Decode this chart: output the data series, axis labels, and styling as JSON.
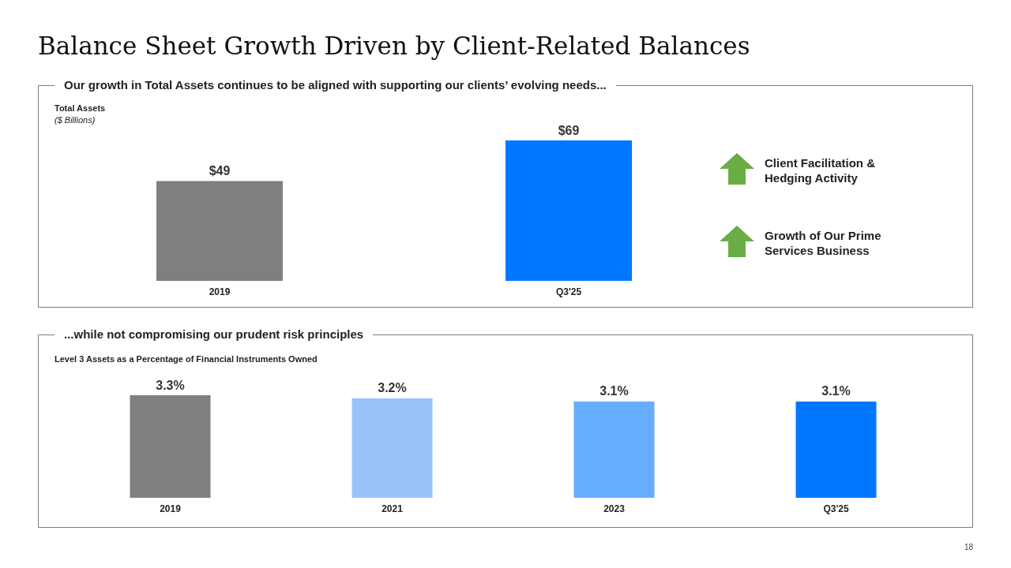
{
  "chart_data": [
    {
      "type": "bar",
      "title": "Balance Sheet Growth Driven by Client-Related Balances",
      "subtitle": "Our growth in Total Assets continues to be aligned with supporting our clients’ evolving needs...",
      "ylabel": "Total Assets",
      "categories": [
        "2019",
        "Q3'25"
      ],
      "values": [
        49,
        69
      ],
      "value_labels": [
        "$49",
        "$69"
      ],
      "colors": [
        "#7f7f7f",
        "#0077ff"
      ],
      "annotations": [
        "($ Billions)",
        "Client Facilitation & Hedging Activity",
        "Growth of Our Prime Services Business"
      ]
    },
    {
      "type": "bar",
      "title": "...while not compromising our prudent risk principles",
      "ylabel": "Level 3 Assets as a Percentage of Financial Instruments Owned",
      "categories": [
        "2019",
        "2021",
        "2023",
        "Q3'25"
      ],
      "values": [
        3.3,
        3.2,
        3.1,
        3.1
      ],
      "value_labels": [
        "3.3%",
        "3.2%",
        "3.1%",
        "3.1%"
      ],
      "colors": [
        "#7f7f7f",
        "#99c2f9",
        "#66adff",
        "#0077ff"
      ],
      "annotations": [
        "18"
      ]
    }
  ]
}
